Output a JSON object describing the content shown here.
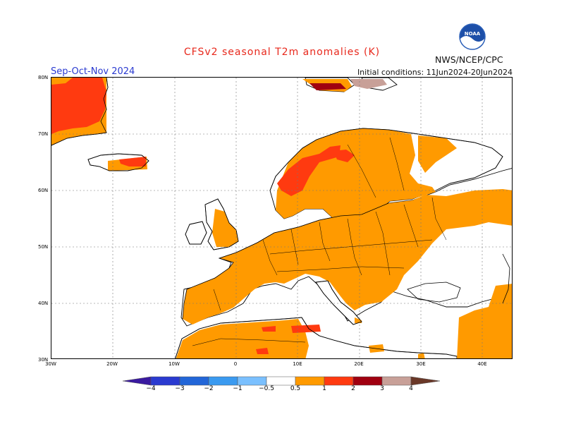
{
  "title": "CFSv2 seasonal T2m anomalies (K)",
  "season": "Sep-Oct-Nov 2024",
  "initial_conditions": "Initial conditions: 11Jun2024-20Jun2024",
  "organization": "NWS/NCEP/CPC",
  "logo_text": "NOAA",
  "lat_labels": [
    "80N",
    "70N",
    "60N",
    "50N",
    "40N",
    "30N"
  ],
  "lon_labels": [
    "30W",
    "20W",
    "10W",
    "0",
    "10E",
    "20E",
    "30E",
    "40E"
  ],
  "colorbar": {
    "labels": [
      "−4",
      "−3",
      "−2",
      "−1",
      "−0.5",
      "0.5",
      "1",
      "2",
      "3",
      "4"
    ],
    "colors": [
      "#3a1aa0",
      "#2a3ad0",
      "#2266d8",
      "#3a9af0",
      "#7ac0ff",
      "#ffffff",
      "#ff9a00",
      "#ff3a10",
      "#a00010",
      "#c8a098",
      "#6a3828"
    ]
  }
}
